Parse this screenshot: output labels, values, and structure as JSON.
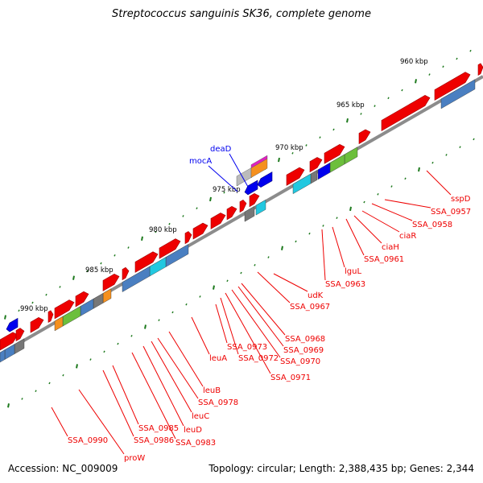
{
  "title": "Streptococcus sanguinis SK36, complete genome",
  "footer": {
    "accession": "Accession: NC_009009",
    "summary": "Topology: circular; Length: 2,388,435 bp; Genes: 2,344"
  },
  "scale_labels": [
    {
      "text": "960 kbp",
      "kbp": 960
    },
    {
      "text": "965 kbp",
      "kbp": 965
    },
    {
      "text": "970 kbp",
      "kbp": 970
    },
    {
      "text": "975 kbp",
      "kbp": 975
    },
    {
      "text": "980 kbp",
      "kbp": 980
    },
    {
      "text": "985 kbp",
      "kbp": 985
    },
    {
      "text": "990 kbp",
      "kbp": 990
    }
  ],
  "gene_labels_reverse": [
    "deaD",
    "mocA"
  ],
  "gene_labels_forward": [
    "sspD",
    "SSA_0957",
    "SSA_0958",
    "ciaR",
    "ciaH",
    "SSA_0961",
    "lguL",
    "SSA_0963",
    "udK",
    "SSA_0967",
    "SSA_0968",
    "SSA_0969",
    "SSA_0970",
    "SSA_0971",
    "SSA_0972",
    "SSA_0973",
    "leuA",
    "leuB",
    "SSA_0978",
    "leuC",
    "leuD",
    "SSA_0983",
    "SSA_0985",
    "SSA_0986",
    "SSA_0990",
    "proW"
  ],
  "colors": {
    "backbone": "#8c8c8c",
    "forward_gene": "#ee0000",
    "reverse_gene": "#0000ee",
    "tick": "#1e7a1e",
    "cog_blue": "#4a7fc1",
    "cog_cyan": "#22c8e0",
    "cog_green": "#6cbf3c",
    "cog_orange": "#f5901e",
    "cog_grey": "#777777",
    "cog_magenta": "#e020c0"
  }
}
